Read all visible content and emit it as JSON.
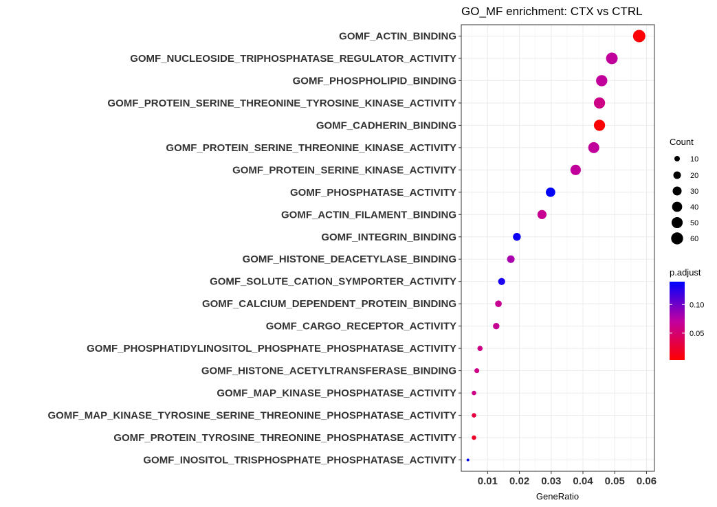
{
  "chart_data": {
    "type": "scatter",
    "title": "GO_MF enrichment: CTX vs CTRL",
    "xlabel": "GeneRatio",
    "ylabel": "",
    "xlim": [
      0.0017,
      0.0625
    ],
    "xticks": [
      0.01,
      0.02,
      0.03,
      0.04,
      0.05,
      0.06
    ],
    "xtick_labels": [
      "0.01",
      "0.02",
      "0.03",
      "0.04",
      "0.05",
      "0.06"
    ],
    "grid": true,
    "legend_position": "right",
    "size_legend": {
      "title": "Count",
      "values": [
        10,
        20,
        30,
        40,
        50,
        60
      ],
      "labels": [
        "10",
        "20",
        "30",
        "40",
        "50",
        "60"
      ]
    },
    "color_legend": {
      "title": "p.adjust",
      "low_color": "#ff0000",
      "high_color": "#0000ff",
      "range": [
        0.003,
        0.14
      ],
      "ticks": [
        0.05,
        0.1
      ],
      "tick_labels": [
        "0.05",
        "0.10"
      ]
    },
    "terms": [
      {
        "label": "GOMF_ACTIN_BINDING",
        "gene_ratio": 0.0577,
        "count": 65,
        "p_adjust": 0.005
      },
      {
        "label": "GOMF_NUCLEOSIDE_TRIPHOSPHATASE_REGULATOR_ACTIVITY",
        "gene_ratio": 0.0491,
        "count": 56,
        "p_adjust": 0.07
      },
      {
        "label": "GOMF_PHOSPHOLIPID_BINDING",
        "gene_ratio": 0.0459,
        "count": 52,
        "p_adjust": 0.07
      },
      {
        "label": "GOMF_PROTEIN_SERINE_THREONINE_TYROSINE_KINASE_ACTIVITY",
        "gene_ratio": 0.0452,
        "count": 51,
        "p_adjust": 0.06
      },
      {
        "label": "GOMF_CADHERIN_BINDING",
        "gene_ratio": 0.0452,
        "count": 51,
        "p_adjust": 0.005
      },
      {
        "label": "GOMF_PROTEIN_SERINE_THREONINE_KINASE_ACTIVITY",
        "gene_ratio": 0.0434,
        "count": 49,
        "p_adjust": 0.07
      },
      {
        "label": "GOMF_PROTEIN_SERINE_KINASE_ACTIVITY",
        "gene_ratio": 0.0377,
        "count": 43,
        "p_adjust": 0.07
      },
      {
        "label": "GOMF_PHOSPHATASE_ACTIVITY",
        "gene_ratio": 0.0298,
        "count": 34,
        "p_adjust": 0.14
      },
      {
        "label": "GOMF_ACTIN_FILAMENT_BINDING",
        "gene_ratio": 0.0271,
        "count": 31,
        "p_adjust": 0.065
      },
      {
        "label": "GOMF_INTEGRIN_BINDING",
        "gene_ratio": 0.0192,
        "count": 22,
        "p_adjust": 0.135
      },
      {
        "label": "GOMF_HISTONE_DEACETYLASE_BINDING",
        "gene_ratio": 0.0173,
        "count": 20,
        "p_adjust": 0.08
      },
      {
        "label": "GOMF_SOLUTE_CATION_SYMPORTER_ACTIVITY",
        "gene_ratio": 0.0144,
        "count": 17,
        "p_adjust": 0.13
      },
      {
        "label": "GOMF_CALCIUM_DEPENDENT_PROTEIN_BINDING",
        "gene_ratio": 0.0134,
        "count": 15,
        "p_adjust": 0.065
      },
      {
        "label": "GOMF_CARGO_RECEPTOR_ACTIVITY",
        "gene_ratio": 0.0127,
        "count": 14,
        "p_adjust": 0.065
      },
      {
        "label": "GOMF_PHOSPHATIDYLINOSITOL_PHOSPHATE_PHOSPHATASE_ACTIVITY",
        "gene_ratio": 0.0076,
        "count": 9,
        "p_adjust": 0.06
      },
      {
        "label": "GOMF_HISTONE_ACETYLTRANSFERASE_BINDING",
        "gene_ratio": 0.0066,
        "count": 8,
        "p_adjust": 0.06
      },
      {
        "label": "GOMF_MAP_KINASE_PHOSPHATASE_ACTIVITY",
        "gene_ratio": 0.0057,
        "count": 7,
        "p_adjust": 0.06
      },
      {
        "label": "GOMF_MAP_KINASE_TYROSINE_SERINE_THREONINE_PHOSPHATASE_ACTIVITY",
        "gene_ratio": 0.0057,
        "count": 7,
        "p_adjust": 0.03
      },
      {
        "label": "GOMF_PROTEIN_TYROSINE_THREONINE_PHOSPHATASE_ACTIVITY",
        "gene_ratio": 0.0057,
        "count": 7,
        "p_adjust": 0.02
      },
      {
        "label": "GOMF_INOSITOL_TRISPHOSPHATE_PHOSPHATASE_ACTIVITY",
        "gene_ratio": 0.0038,
        "count": 5,
        "p_adjust": 0.14
      }
    ]
  }
}
